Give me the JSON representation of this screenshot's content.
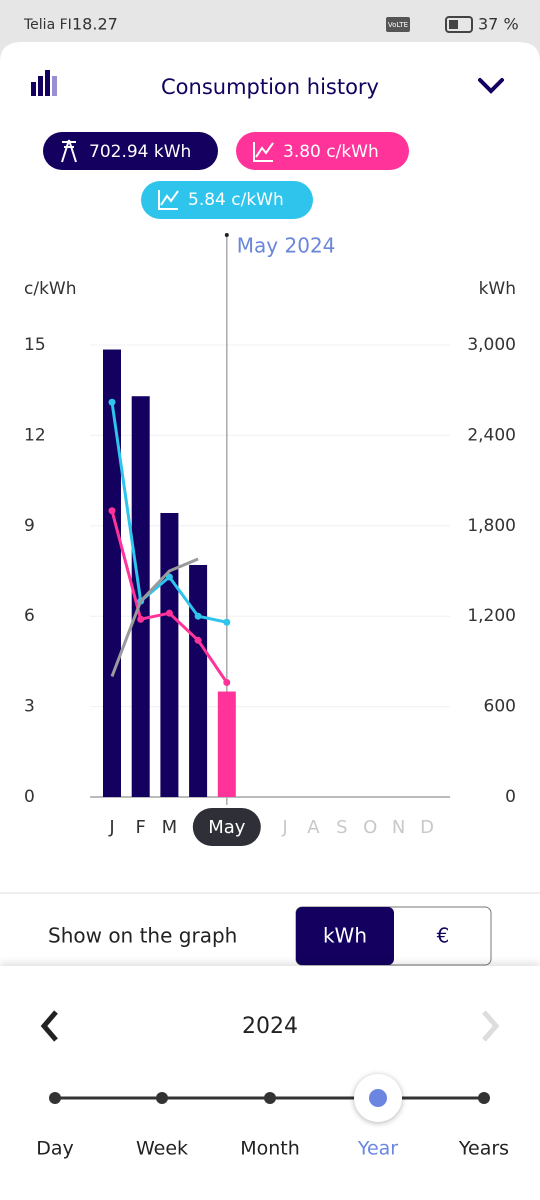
{
  "status_bar": {
    "carrier": "Telia FI",
    "time": "18.27",
    "network": "VoLTE",
    "battery": "37 %"
  },
  "header": {
    "title": "Consumption history"
  },
  "badges": [
    "702.94 kWh",
    "3.80 c/kWh",
    "5.84 c/kWh"
  ],
  "chart_data": {
    "type": "bar",
    "annotation": "May 2024",
    "y_label": "c/kWh",
    "y2_label": "kWh",
    "categories": [
      "J",
      "F",
      "M",
      null,
      "May",
      "J",
      "A",
      "S",
      "O",
      "N",
      "D"
    ],
    "series": [
      {
        "axis": "y2",
        "values": [
          2970,
          2660,
          1885,
          1540,
          700,
          null,
          null,
          null,
          null,
          null,
          null
        ],
        "colors": [
          "#13005f",
          "#13005f",
          "#13005f",
          "#13005f",
          "#ff3399",
          "#13005f",
          "#13005f",
          "#13005f",
          "#13005f",
          "#13005f",
          "#13005f"
        ]
      },
      {
        "type": "line",
        "color": "#ff3399",
        "values": [
          9.5,
          5.9,
          6.1,
          5.2,
          3.8,
          null,
          null,
          null,
          null,
          null,
          null
        ]
      },
      {
        "type": "line",
        "color": "#2ec4ec",
        "values": [
          13.1,
          6.5,
          7.3,
          6.0,
          5.8,
          null,
          null,
          null,
          null,
          null,
          null
        ]
      },
      {
        "type": "line",
        "color": "#9a9a9a",
        "values": [
          4.0,
          6.5,
          7.5,
          7.9,
          null,
          null,
          null,
          null,
          null,
          null,
          null
        ]
      }
    ],
    "ylim": [
      0,
      15
    ],
    "yticks": [
      0,
      3,
      6,
      9,
      12,
      15
    ],
    "y2lim": [
      0,
      3000
    ],
    "y2ticks": [
      0,
      600,
      {
        "value": 1200,
        "label": "1,200"
      },
      {
        "value": 1800,
        "label": "1,800"
      },
      {
        "value": 2400,
        "label": "2,400"
      },
      {
        "value": 3000,
        "label": "3,000"
      }
    ],
    "grid": true
  },
  "controls": {
    "label": "Show on the graph",
    "options": [
      "kWh",
      "€"
    ]
  },
  "period": {
    "year": "2024",
    "scales": [
      "Day",
      "Week",
      "Month",
      "Year",
      "Years"
    ]
  }
}
